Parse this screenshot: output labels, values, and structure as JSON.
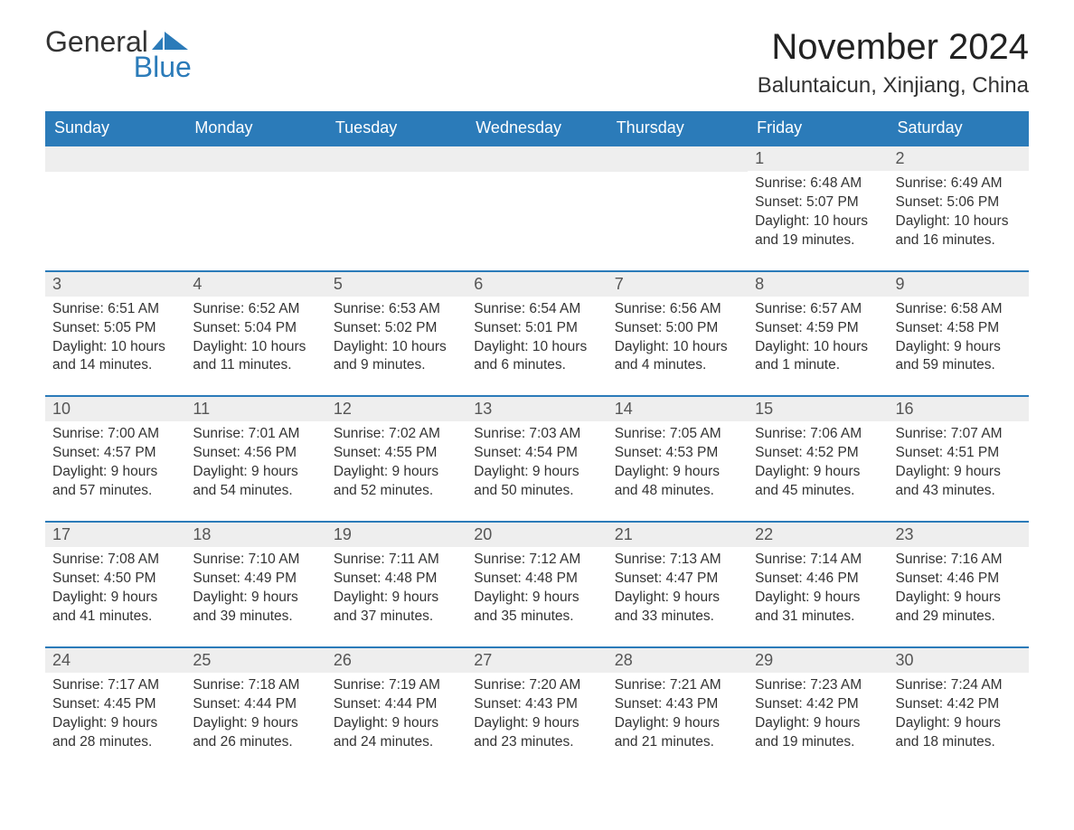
{
  "logo": {
    "word1": "General",
    "word2": "Blue"
  },
  "title": "November 2024",
  "location": "Baluntaicun, Xinjiang, China",
  "colors": {
    "header_bg": "#2b7bb9",
    "header_text": "#ffffff",
    "daynum_bg": "#eeeeee",
    "border": "#2b7bb9",
    "text": "#333333",
    "logo_accent": "#2b7bb9"
  },
  "fonts": {
    "title_pt": 40,
    "location_pt": 24,
    "dow_pt": 18,
    "body_pt": 15.5
  },
  "days_of_week": [
    "Sunday",
    "Monday",
    "Tuesday",
    "Wednesday",
    "Thursday",
    "Friday",
    "Saturday"
  ],
  "weeks": [
    [
      null,
      null,
      null,
      null,
      null,
      {
        "n": "1",
        "sunrise": "Sunrise: 6:48 AM",
        "sunset": "Sunset: 5:07 PM",
        "dl1": "Daylight: 10 hours",
        "dl2": "and 19 minutes."
      },
      {
        "n": "2",
        "sunrise": "Sunrise: 6:49 AM",
        "sunset": "Sunset: 5:06 PM",
        "dl1": "Daylight: 10 hours",
        "dl2": "and 16 minutes."
      }
    ],
    [
      {
        "n": "3",
        "sunrise": "Sunrise: 6:51 AM",
        "sunset": "Sunset: 5:05 PM",
        "dl1": "Daylight: 10 hours",
        "dl2": "and 14 minutes."
      },
      {
        "n": "4",
        "sunrise": "Sunrise: 6:52 AM",
        "sunset": "Sunset: 5:04 PM",
        "dl1": "Daylight: 10 hours",
        "dl2": "and 11 minutes."
      },
      {
        "n": "5",
        "sunrise": "Sunrise: 6:53 AM",
        "sunset": "Sunset: 5:02 PM",
        "dl1": "Daylight: 10 hours",
        "dl2": "and 9 minutes."
      },
      {
        "n": "6",
        "sunrise": "Sunrise: 6:54 AM",
        "sunset": "Sunset: 5:01 PM",
        "dl1": "Daylight: 10 hours",
        "dl2": "and 6 minutes."
      },
      {
        "n": "7",
        "sunrise": "Sunrise: 6:56 AM",
        "sunset": "Sunset: 5:00 PM",
        "dl1": "Daylight: 10 hours",
        "dl2": "and 4 minutes."
      },
      {
        "n": "8",
        "sunrise": "Sunrise: 6:57 AM",
        "sunset": "Sunset: 4:59 PM",
        "dl1": "Daylight: 10 hours",
        "dl2": "and 1 minute."
      },
      {
        "n": "9",
        "sunrise": "Sunrise: 6:58 AM",
        "sunset": "Sunset: 4:58 PM",
        "dl1": "Daylight: 9 hours",
        "dl2": "and 59 minutes."
      }
    ],
    [
      {
        "n": "10",
        "sunrise": "Sunrise: 7:00 AM",
        "sunset": "Sunset: 4:57 PM",
        "dl1": "Daylight: 9 hours",
        "dl2": "and 57 minutes."
      },
      {
        "n": "11",
        "sunrise": "Sunrise: 7:01 AM",
        "sunset": "Sunset: 4:56 PM",
        "dl1": "Daylight: 9 hours",
        "dl2": "and 54 minutes."
      },
      {
        "n": "12",
        "sunrise": "Sunrise: 7:02 AM",
        "sunset": "Sunset: 4:55 PM",
        "dl1": "Daylight: 9 hours",
        "dl2": "and 52 minutes."
      },
      {
        "n": "13",
        "sunrise": "Sunrise: 7:03 AM",
        "sunset": "Sunset: 4:54 PM",
        "dl1": "Daylight: 9 hours",
        "dl2": "and 50 minutes."
      },
      {
        "n": "14",
        "sunrise": "Sunrise: 7:05 AM",
        "sunset": "Sunset: 4:53 PM",
        "dl1": "Daylight: 9 hours",
        "dl2": "and 48 minutes."
      },
      {
        "n": "15",
        "sunrise": "Sunrise: 7:06 AM",
        "sunset": "Sunset: 4:52 PM",
        "dl1": "Daylight: 9 hours",
        "dl2": "and 45 minutes."
      },
      {
        "n": "16",
        "sunrise": "Sunrise: 7:07 AM",
        "sunset": "Sunset: 4:51 PM",
        "dl1": "Daylight: 9 hours",
        "dl2": "and 43 minutes."
      }
    ],
    [
      {
        "n": "17",
        "sunrise": "Sunrise: 7:08 AM",
        "sunset": "Sunset: 4:50 PM",
        "dl1": "Daylight: 9 hours",
        "dl2": "and 41 minutes."
      },
      {
        "n": "18",
        "sunrise": "Sunrise: 7:10 AM",
        "sunset": "Sunset: 4:49 PM",
        "dl1": "Daylight: 9 hours",
        "dl2": "and 39 minutes."
      },
      {
        "n": "19",
        "sunrise": "Sunrise: 7:11 AM",
        "sunset": "Sunset: 4:48 PM",
        "dl1": "Daylight: 9 hours",
        "dl2": "and 37 minutes."
      },
      {
        "n": "20",
        "sunrise": "Sunrise: 7:12 AM",
        "sunset": "Sunset: 4:48 PM",
        "dl1": "Daylight: 9 hours",
        "dl2": "and 35 minutes."
      },
      {
        "n": "21",
        "sunrise": "Sunrise: 7:13 AM",
        "sunset": "Sunset: 4:47 PM",
        "dl1": "Daylight: 9 hours",
        "dl2": "and 33 minutes."
      },
      {
        "n": "22",
        "sunrise": "Sunrise: 7:14 AM",
        "sunset": "Sunset: 4:46 PM",
        "dl1": "Daylight: 9 hours",
        "dl2": "and 31 minutes."
      },
      {
        "n": "23",
        "sunrise": "Sunrise: 7:16 AM",
        "sunset": "Sunset: 4:46 PM",
        "dl1": "Daylight: 9 hours",
        "dl2": "and 29 minutes."
      }
    ],
    [
      {
        "n": "24",
        "sunrise": "Sunrise: 7:17 AM",
        "sunset": "Sunset: 4:45 PM",
        "dl1": "Daylight: 9 hours",
        "dl2": "and 28 minutes."
      },
      {
        "n": "25",
        "sunrise": "Sunrise: 7:18 AM",
        "sunset": "Sunset: 4:44 PM",
        "dl1": "Daylight: 9 hours",
        "dl2": "and 26 minutes."
      },
      {
        "n": "26",
        "sunrise": "Sunrise: 7:19 AM",
        "sunset": "Sunset: 4:44 PM",
        "dl1": "Daylight: 9 hours",
        "dl2": "and 24 minutes."
      },
      {
        "n": "27",
        "sunrise": "Sunrise: 7:20 AM",
        "sunset": "Sunset: 4:43 PM",
        "dl1": "Daylight: 9 hours",
        "dl2": "and 23 minutes."
      },
      {
        "n": "28",
        "sunrise": "Sunrise: 7:21 AM",
        "sunset": "Sunset: 4:43 PM",
        "dl1": "Daylight: 9 hours",
        "dl2": "and 21 minutes."
      },
      {
        "n": "29",
        "sunrise": "Sunrise: 7:23 AM",
        "sunset": "Sunset: 4:42 PM",
        "dl1": "Daylight: 9 hours",
        "dl2": "and 19 minutes."
      },
      {
        "n": "30",
        "sunrise": "Sunrise: 7:24 AM",
        "sunset": "Sunset: 4:42 PM",
        "dl1": "Daylight: 9 hours",
        "dl2": "and 18 minutes."
      }
    ]
  ]
}
